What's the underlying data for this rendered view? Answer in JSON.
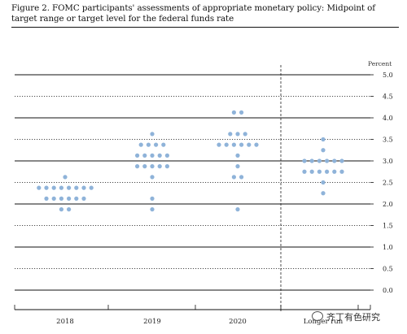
{
  "figure_title": "Figure 2. FOMC participants' assessments of appropriate monetary policy: Midpoint of target range or target level for the federal funds rate",
  "watermark": "齐丁有色研究",
  "chart_data": {
    "type": "scatter",
    "unit_label": "Percent",
    "categories": [
      "2018",
      "2019",
      "2020",
      "Longer run"
    ],
    "ylim": [
      0,
      5
    ],
    "yticks": [
      "0.0",
      "0.5",
      "1.0",
      "1.5",
      "2.0",
      "2.5",
      "3.0",
      "3.5",
      "4.0",
      "4.5",
      "5.0"
    ],
    "dot_color": "#8fb3d9",
    "dots": {
      "2018": [
        {
          "rate": 2.625,
          "count": 1
        },
        {
          "rate": 2.375,
          "count": 8
        },
        {
          "rate": 2.125,
          "count": 6
        },
        {
          "rate": 1.875,
          "count": 2
        }
      ],
      "2019": [
        {
          "rate": 3.625,
          "count": 1
        },
        {
          "rate": 3.375,
          "count": 4
        },
        {
          "rate": 3.125,
          "count": 5
        },
        {
          "rate": 2.875,
          "count": 5
        },
        {
          "rate": 2.625,
          "count": 1
        },
        {
          "rate": 2.125,
          "count": 1
        },
        {
          "rate": 1.875,
          "count": 1
        }
      ],
      "2020": [
        {
          "rate": 4.125,
          "count": 2
        },
        {
          "rate": 3.625,
          "count": 3
        },
        {
          "rate": 3.375,
          "count": 6
        },
        {
          "rate": 3.125,
          "count": 1
        },
        {
          "rate": 2.875,
          "count": 1
        },
        {
          "rate": 2.625,
          "count": 2
        },
        {
          "rate": 1.875,
          "count": 1
        }
      ],
      "Longer run": [
        {
          "rate": 3.5,
          "count": 1
        },
        {
          "rate": 3.25,
          "count": 1
        },
        {
          "rate": 3.0,
          "count": 6
        },
        {
          "rate": 2.75,
          "count": 6
        },
        {
          "rate": 2.5,
          "count": 1
        },
        {
          "rate": 2.25,
          "count": 1
        }
      ]
    }
  }
}
